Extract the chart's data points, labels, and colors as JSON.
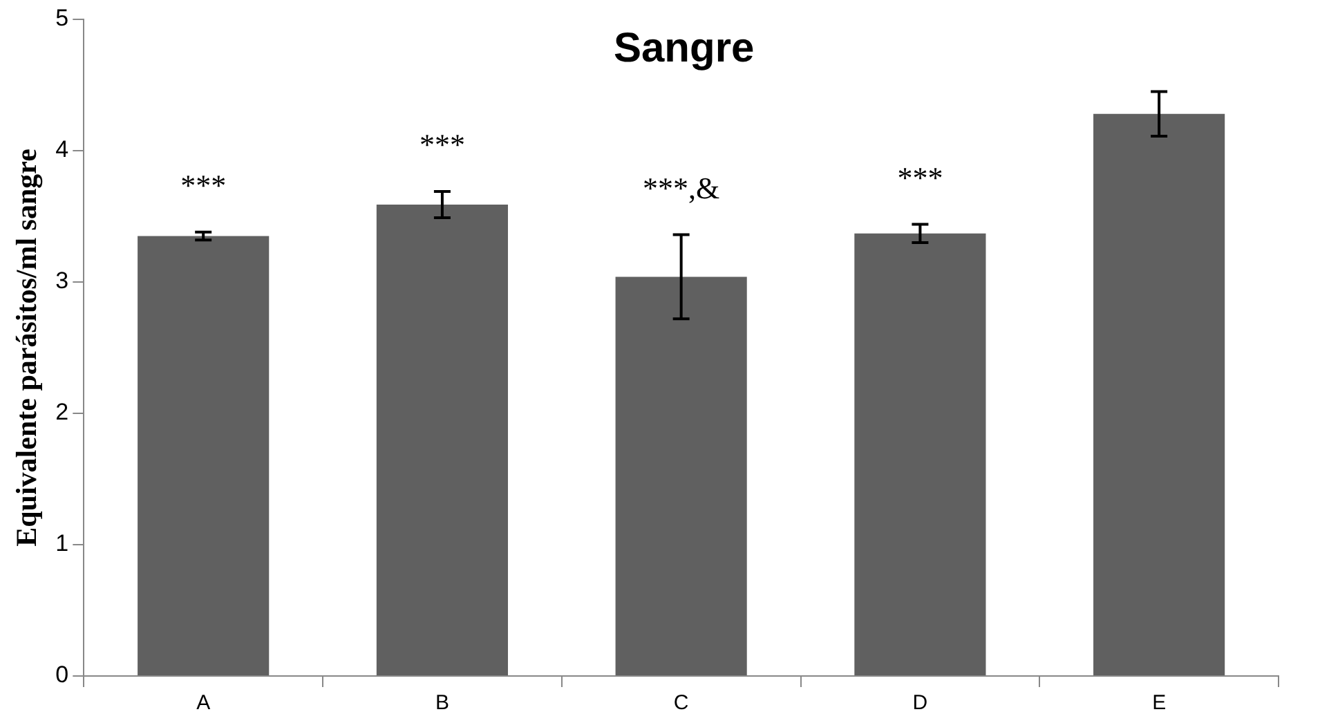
{
  "chart_data": {
    "type": "bar",
    "title": "Sangre",
    "ylabel": "Equivalente parásitos/ml sangre",
    "categories": [
      "A",
      "B",
      "C",
      "D",
      "E"
    ],
    "values": [
      3.35,
      3.59,
      3.04,
      3.37,
      4.28
    ],
    "errors": [
      0.03,
      0.1,
      0.32,
      0.07,
      0.17
    ],
    "color": "#606060",
    "ylim": [
      0,
      5
    ],
    "yticks": [
      0,
      1,
      2,
      3,
      4,
      5
    ],
    "grid": false,
    "annotations": [
      "***",
      "***",
      "***,&",
      "***"
    ]
  }
}
